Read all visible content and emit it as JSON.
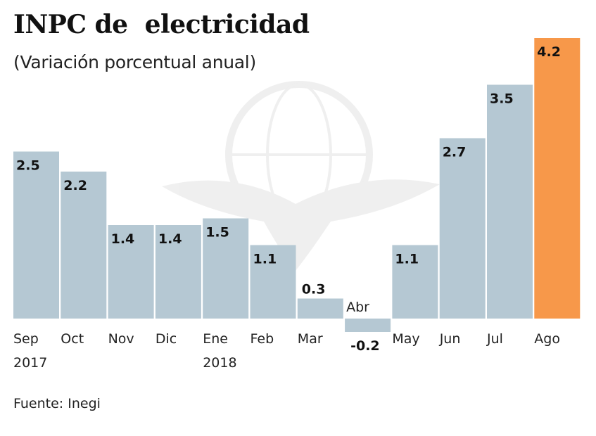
{
  "chart_data": {
    "type": "bar",
    "title": "INPC de  electricidad",
    "subtitle": "(Variación porcentual anual)",
    "source": "Fuente: Inegi",
    "xlabel": "",
    "ylabel": "",
    "ylim": [
      -0.2,
      4.2
    ],
    "grid": false,
    "legend": "none",
    "categories": [
      "Sep",
      "Oct",
      "Nov",
      "Dic",
      "Ene",
      "Feb",
      "Mar",
      "Abr",
      "May",
      "Jun",
      "Jul",
      "Ago"
    ],
    "year_labels": [
      "2017",
      "",
      "",
      "",
      "2018",
      "",
      "",
      "",
      "",
      "",
      "",
      ""
    ],
    "values": [
      2.5,
      2.2,
      1.4,
      1.4,
      1.5,
      1.1,
      0.3,
      -0.2,
      1.1,
      2.7,
      3.5,
      4.2
    ],
    "value_labels": [
      "2.5",
      "2.2",
      "1.4",
      "1.4",
      "1.5",
      "1.1",
      "0.3",
      "-0.2",
      "1.1",
      "2.7",
      "3.5",
      "4.2"
    ],
    "highlight_index": 11,
    "colors": {
      "bar": "#b5c8d3",
      "highlight": "#f7984a",
      "label": "#111111",
      "tick": "#222222"
    }
  }
}
